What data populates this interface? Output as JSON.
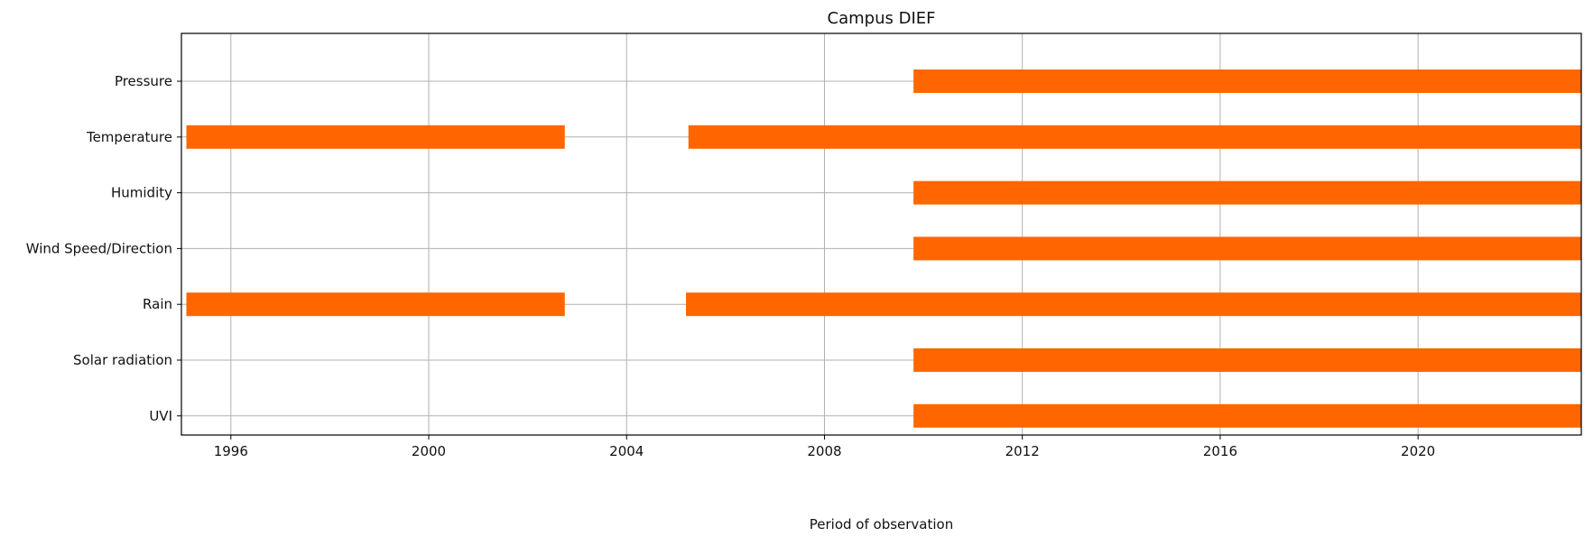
{
  "chart_data": {
    "type": "bar",
    "orientation": "horizontal",
    "title": "Campus DIEF",
    "xlabel": "Period of observation",
    "ylabel": "",
    "xlim": [
      1995.0,
      2023.3
    ],
    "x_ticks": [
      "1996",
      "2000",
      "2004",
      "2008",
      "2012",
      "2016",
      "2020"
    ],
    "grid": true,
    "bar_color": "#ff6600",
    "grid_color": "#b0b0b0",
    "categories": [
      "Pressure",
      "Temperature",
      "Humidity",
      "Wind Speed/Direction",
      "Rain",
      "Solar radiation",
      "UVI"
    ],
    "series": [
      {
        "category": "Pressure",
        "periods": [
          [
            2009.8,
            2023.3
          ]
        ]
      },
      {
        "category": "Temperature",
        "periods": [
          [
            1995.1,
            2002.75
          ],
          [
            2005.25,
            2023.3
          ]
        ]
      },
      {
        "category": "Humidity",
        "periods": [
          [
            2009.8,
            2023.3
          ]
        ]
      },
      {
        "category": "Wind Speed/Direction",
        "periods": [
          [
            2009.8,
            2023.3
          ]
        ]
      },
      {
        "category": "Rain",
        "periods": [
          [
            1995.1,
            2002.75
          ],
          [
            2005.2,
            2023.3
          ]
        ]
      },
      {
        "category": "Solar radiation",
        "periods": [
          [
            2009.8,
            2023.3
          ]
        ]
      },
      {
        "category": "UVI",
        "periods": [
          [
            2009.8,
            2023.3
          ]
        ]
      }
    ]
  }
}
